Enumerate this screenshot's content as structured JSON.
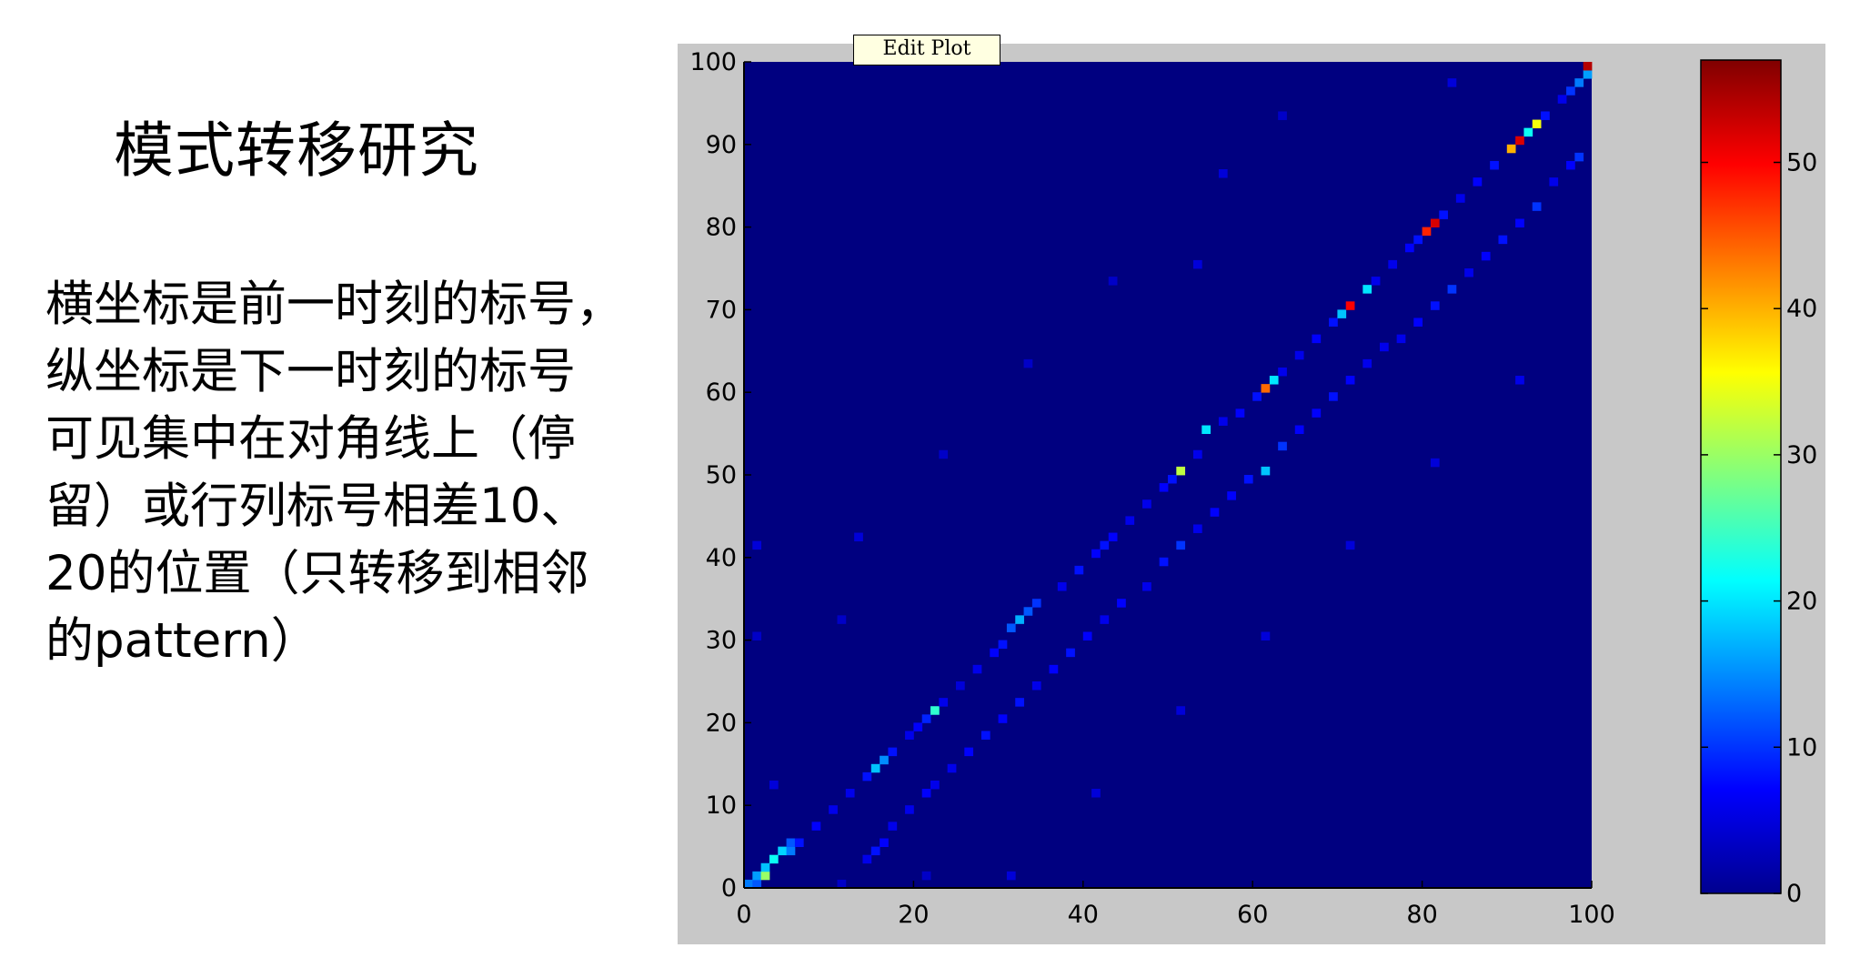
{
  "slide": {
    "title": "模式转移研究",
    "description_lines": [
      "横坐标是前一时刻的标号，",
      "纵坐标是下一时刻的标号",
      "可见集中在对角线上（停",
      "留）或行列标号相差10、",
      "20的位置（只转移到相邻",
      "的pattern）"
    ]
  },
  "tooltip": {
    "text": "Edit Plot"
  },
  "chart_data": {
    "type": "heatmap",
    "title": "",
    "xlabel": "",
    "ylabel": "",
    "xlim": [
      0,
      100
    ],
    "ylim": [
      0,
      100
    ],
    "x_ticks": [
      0,
      20,
      40,
      60,
      80,
      100
    ],
    "y_ticks": [
      0,
      10,
      20,
      30,
      40,
      50,
      60,
      70,
      80,
      90,
      100
    ],
    "x_tick_labels": [
      "0",
      "20",
      "40",
      "60",
      "80",
      "100"
    ],
    "y_tick_labels": [
      "0",
      "10",
      "20",
      "30",
      "40",
      "50",
      "60",
      "70",
      "80",
      "90",
      "100"
    ],
    "colormap": "jet",
    "clim": [
      0,
      57
    ],
    "colorbar_ticks": [
      0,
      10,
      20,
      30,
      40,
      50
    ],
    "colorbar_tick_labels": [
      "0",
      "10",
      "20",
      "30",
      "40",
      "50"
    ],
    "background_value": 0,
    "cells": [
      {
        "x": 1,
        "y": 1,
        "v": 14
      },
      {
        "x": 2,
        "y": 1,
        "v": 12
      },
      {
        "x": 2,
        "y": 2,
        "v": 16
      },
      {
        "x": 3,
        "y": 2,
        "v": 30
      },
      {
        "x": 3,
        "y": 3,
        "v": 18
      },
      {
        "x": 4,
        "y": 4,
        "v": 22
      },
      {
        "x": 5,
        "y": 5,
        "v": 19
      },
      {
        "x": 6,
        "y": 5,
        "v": 14
      },
      {
        "x": 6,
        "y": 6,
        "v": 12
      },
      {
        "x": 7,
        "y": 6,
        "v": 8
      },
      {
        "x": 9,
        "y": 8,
        "v": 7
      },
      {
        "x": 11,
        "y": 10,
        "v": 6
      },
      {
        "x": 13,
        "y": 12,
        "v": 6
      },
      {
        "x": 15,
        "y": 14,
        "v": 8
      },
      {
        "x": 16,
        "y": 15,
        "v": 18
      },
      {
        "x": 17,
        "y": 16,
        "v": 15
      },
      {
        "x": 18,
        "y": 17,
        "v": 8
      },
      {
        "x": 20,
        "y": 19,
        "v": 6
      },
      {
        "x": 21,
        "y": 20,
        "v": 7
      },
      {
        "x": 22,
        "y": 21,
        "v": 9
      },
      {
        "x": 23,
        "y": 22,
        "v": 24
      },
      {
        "x": 24,
        "y": 23,
        "v": 6
      },
      {
        "x": 26,
        "y": 25,
        "v": 5
      },
      {
        "x": 28,
        "y": 27,
        "v": 6
      },
      {
        "x": 30,
        "y": 29,
        "v": 7
      },
      {
        "x": 31,
        "y": 30,
        "v": 8
      },
      {
        "x": 32,
        "y": 32,
        "v": 12
      },
      {
        "x": 33,
        "y": 33,
        "v": 17
      },
      {
        "x": 34,
        "y": 34,
        "v": 12
      },
      {
        "x": 35,
        "y": 35,
        "v": 10
      },
      {
        "x": 38,
        "y": 37,
        "v": 6
      },
      {
        "x": 40,
        "y": 39,
        "v": 8
      },
      {
        "x": 42,
        "y": 41,
        "v": 7
      },
      {
        "x": 43,
        "y": 42,
        "v": 8
      },
      {
        "x": 44,
        "y": 43,
        "v": 7
      },
      {
        "x": 46,
        "y": 45,
        "v": 6
      },
      {
        "x": 48,
        "y": 47,
        "v": 6
      },
      {
        "x": 50,
        "y": 49,
        "v": 7
      },
      {
        "x": 51,
        "y": 50,
        "v": 8
      },
      {
        "x": 52,
        "y": 51,
        "v": 32
      },
      {
        "x": 54,
        "y": 53,
        "v": 6
      },
      {
        "x": 55,
        "y": 56,
        "v": 20
      },
      {
        "x": 57,
        "y": 57,
        "v": 6
      },
      {
        "x": 59,
        "y": 58,
        "v": 7
      },
      {
        "x": 61,
        "y": 60,
        "v": 8
      },
      {
        "x": 62,
        "y": 61,
        "v": 44
      },
      {
        "x": 63,
        "y": 62,
        "v": 20
      },
      {
        "x": 64,
        "y": 63,
        "v": 6
      },
      {
        "x": 66,
        "y": 65,
        "v": 6
      },
      {
        "x": 68,
        "y": 67,
        "v": 7
      },
      {
        "x": 70,
        "y": 69,
        "v": 8
      },
      {
        "x": 71,
        "y": 70,
        "v": 18
      },
      {
        "x": 72,
        "y": 71,
        "v": 50
      },
      {
        "x": 74,
        "y": 73,
        "v": 20
      },
      {
        "x": 75,
        "y": 74,
        "v": 6
      },
      {
        "x": 77,
        "y": 76,
        "v": 6
      },
      {
        "x": 79,
        "y": 78,
        "v": 7
      },
      {
        "x": 80,
        "y": 79,
        "v": 8
      },
      {
        "x": 81,
        "y": 80,
        "v": 48
      },
      {
        "x": 82,
        "y": 81,
        "v": 52
      },
      {
        "x": 83,
        "y": 82,
        "v": 8
      },
      {
        "x": 85,
        "y": 84,
        "v": 6
      },
      {
        "x": 87,
        "y": 86,
        "v": 7
      },
      {
        "x": 89,
        "y": 88,
        "v": 8
      },
      {
        "x": 91,
        "y": 90,
        "v": 40
      },
      {
        "x": 92,
        "y": 91,
        "v": 52
      },
      {
        "x": 93,
        "y": 92,
        "v": 22
      },
      {
        "x": 94,
        "y": 93,
        "v": 35
      },
      {
        "x": 95,
        "y": 94,
        "v": 8
      },
      {
        "x": 97,
        "y": 96,
        "v": 6
      },
      {
        "x": 98,
        "y": 97,
        "v": 10
      },
      {
        "x": 99,
        "y": 98,
        "v": 14
      },
      {
        "x": 100,
        "y": 99,
        "v": 16
      },
      {
        "x": 100,
        "y": 100,
        "v": 54
      },
      {
        "x": 15,
        "y": 4,
        "v": 6
      },
      {
        "x": 16,
        "y": 5,
        "v": 8
      },
      {
        "x": 17,
        "y": 6,
        "v": 7
      },
      {
        "x": 18,
        "y": 8,
        "v": 6
      },
      {
        "x": 20,
        "y": 10,
        "v": 6
      },
      {
        "x": 22,
        "y": 12,
        "v": 7
      },
      {
        "x": 23,
        "y": 13,
        "v": 6
      },
      {
        "x": 25,
        "y": 15,
        "v": 6
      },
      {
        "x": 27,
        "y": 17,
        "v": 7
      },
      {
        "x": 29,
        "y": 19,
        "v": 8
      },
      {
        "x": 31,
        "y": 21,
        "v": 7
      },
      {
        "x": 33,
        "y": 23,
        "v": 8
      },
      {
        "x": 35,
        "y": 25,
        "v": 6
      },
      {
        "x": 37,
        "y": 27,
        "v": 7
      },
      {
        "x": 39,
        "y": 29,
        "v": 8
      },
      {
        "x": 41,
        "y": 31,
        "v": 7
      },
      {
        "x": 43,
        "y": 33,
        "v": 6
      },
      {
        "x": 45,
        "y": 35,
        "v": 7
      },
      {
        "x": 48,
        "y": 37,
        "v": 6
      },
      {
        "x": 50,
        "y": 40,
        "v": 8
      },
      {
        "x": 52,
        "y": 42,
        "v": 10
      },
      {
        "x": 54,
        "y": 44,
        "v": 6
      },
      {
        "x": 56,
        "y": 46,
        "v": 7
      },
      {
        "x": 58,
        "y": 48,
        "v": 7
      },
      {
        "x": 60,
        "y": 50,
        "v": 8
      },
      {
        "x": 62,
        "y": 51,
        "v": 18
      },
      {
        "x": 64,
        "y": 54,
        "v": 10
      },
      {
        "x": 66,
        "y": 56,
        "v": 7
      },
      {
        "x": 68,
        "y": 58,
        "v": 7
      },
      {
        "x": 70,
        "y": 60,
        "v": 8
      },
      {
        "x": 72,
        "y": 62,
        "v": 7
      },
      {
        "x": 74,
        "y": 64,
        "v": 6
      },
      {
        "x": 76,
        "y": 66,
        "v": 6
      },
      {
        "x": 78,
        "y": 67,
        "v": 6
      },
      {
        "x": 80,
        "y": 69,
        "v": 7
      },
      {
        "x": 82,
        "y": 71,
        "v": 8
      },
      {
        "x": 84,
        "y": 73,
        "v": 10
      },
      {
        "x": 86,
        "y": 75,
        "v": 6
      },
      {
        "x": 88,
        "y": 77,
        "v": 7
      },
      {
        "x": 90,
        "y": 79,
        "v": 8
      },
      {
        "x": 92,
        "y": 81,
        "v": 7
      },
      {
        "x": 94,
        "y": 83,
        "v": 10
      },
      {
        "x": 96,
        "y": 86,
        "v": 6
      },
      {
        "x": 98,
        "y": 88,
        "v": 7
      },
      {
        "x": 99,
        "y": 89,
        "v": 10
      },
      {
        "x": 62,
        "y": 31,
        "v": 5
      },
      {
        "x": 72,
        "y": 42,
        "v": 5
      },
      {
        "x": 82,
        "y": 52,
        "v": 5
      },
      {
        "x": 92,
        "y": 62,
        "v": 6
      },
      {
        "x": 52,
        "y": 22,
        "v": 5
      },
      {
        "x": 42,
        "y": 12,
        "v": 5
      },
      {
        "x": 32,
        "y": 2,
        "v": 5
      },
      {
        "x": 22,
        "y": 2,
        "v": 4
      },
      {
        "x": 12,
        "y": 1,
        "v": 4
      },
      {
        "x": 2,
        "y": 42,
        "v": 5
      },
      {
        "x": 2,
        "y": 31,
        "v": 4
      },
      {
        "x": 4,
        "y": 13,
        "v": 5
      },
      {
        "x": 12,
        "y": 33,
        "v": 4
      },
      {
        "x": 14,
        "y": 43,
        "v": 5
      },
      {
        "x": 24,
        "y": 53,
        "v": 4
      },
      {
        "x": 34,
        "y": 64,
        "v": 4
      },
      {
        "x": 44,
        "y": 74,
        "v": 4
      },
      {
        "x": 54,
        "y": 76,
        "v": 5
      },
      {
        "x": 57,
        "y": 87,
        "v": 5
      },
      {
        "x": 64,
        "y": 94,
        "v": 4
      },
      {
        "x": 84,
        "y": 98,
        "v": 5
      }
    ]
  }
}
